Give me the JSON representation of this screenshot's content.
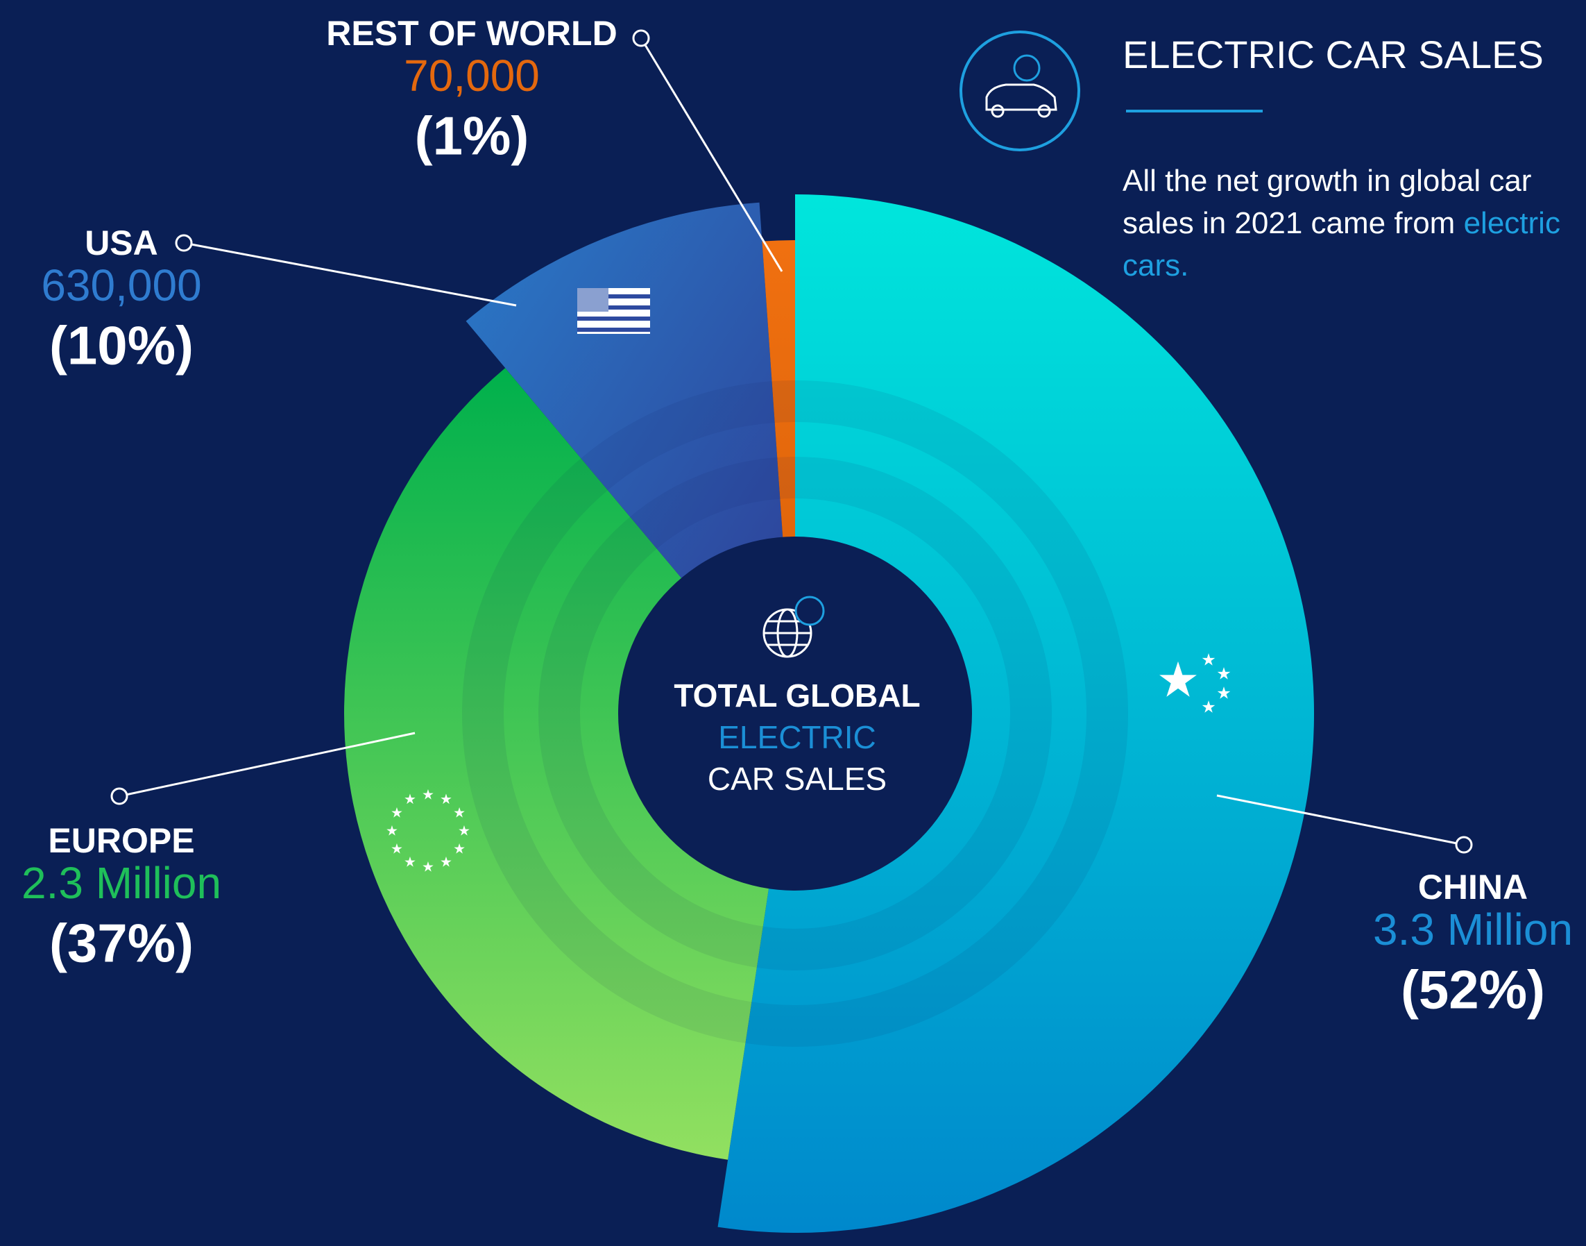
{
  "chart_data": {
    "type": "pie",
    "title": "ELECTRIC CAR SALES",
    "subtitle": "All the net growth in global car sales in 2021 came from",
    "subtitle_highlight": "electric cars.",
    "center_label": [
      "TOTAL GLOBAL",
      "ELECTRIC",
      "CAR SALES"
    ],
    "categories": [
      "CHINA",
      "EUROPE",
      "USA",
      "REST OF WORLD"
    ],
    "values": [
      3300000,
      2300000,
      630000,
      70000
    ],
    "value_labels": [
      "3.3 Million",
      "2.3 Million",
      "630,000",
      "70,000"
    ],
    "shares": [
      52,
      37,
      10,
      1
    ],
    "share_labels": [
      "(52%)",
      "(37%)",
      "(10%)",
      "(1%)"
    ],
    "colors": [
      "#00b8e0",
      "#22c058",
      "#2a5bb0",
      "#e4680e"
    ],
    "label_colors": [
      "#1b8fd6",
      "#1fbf5a",
      "#2f7cd0",
      "#e4680e"
    ]
  }
}
